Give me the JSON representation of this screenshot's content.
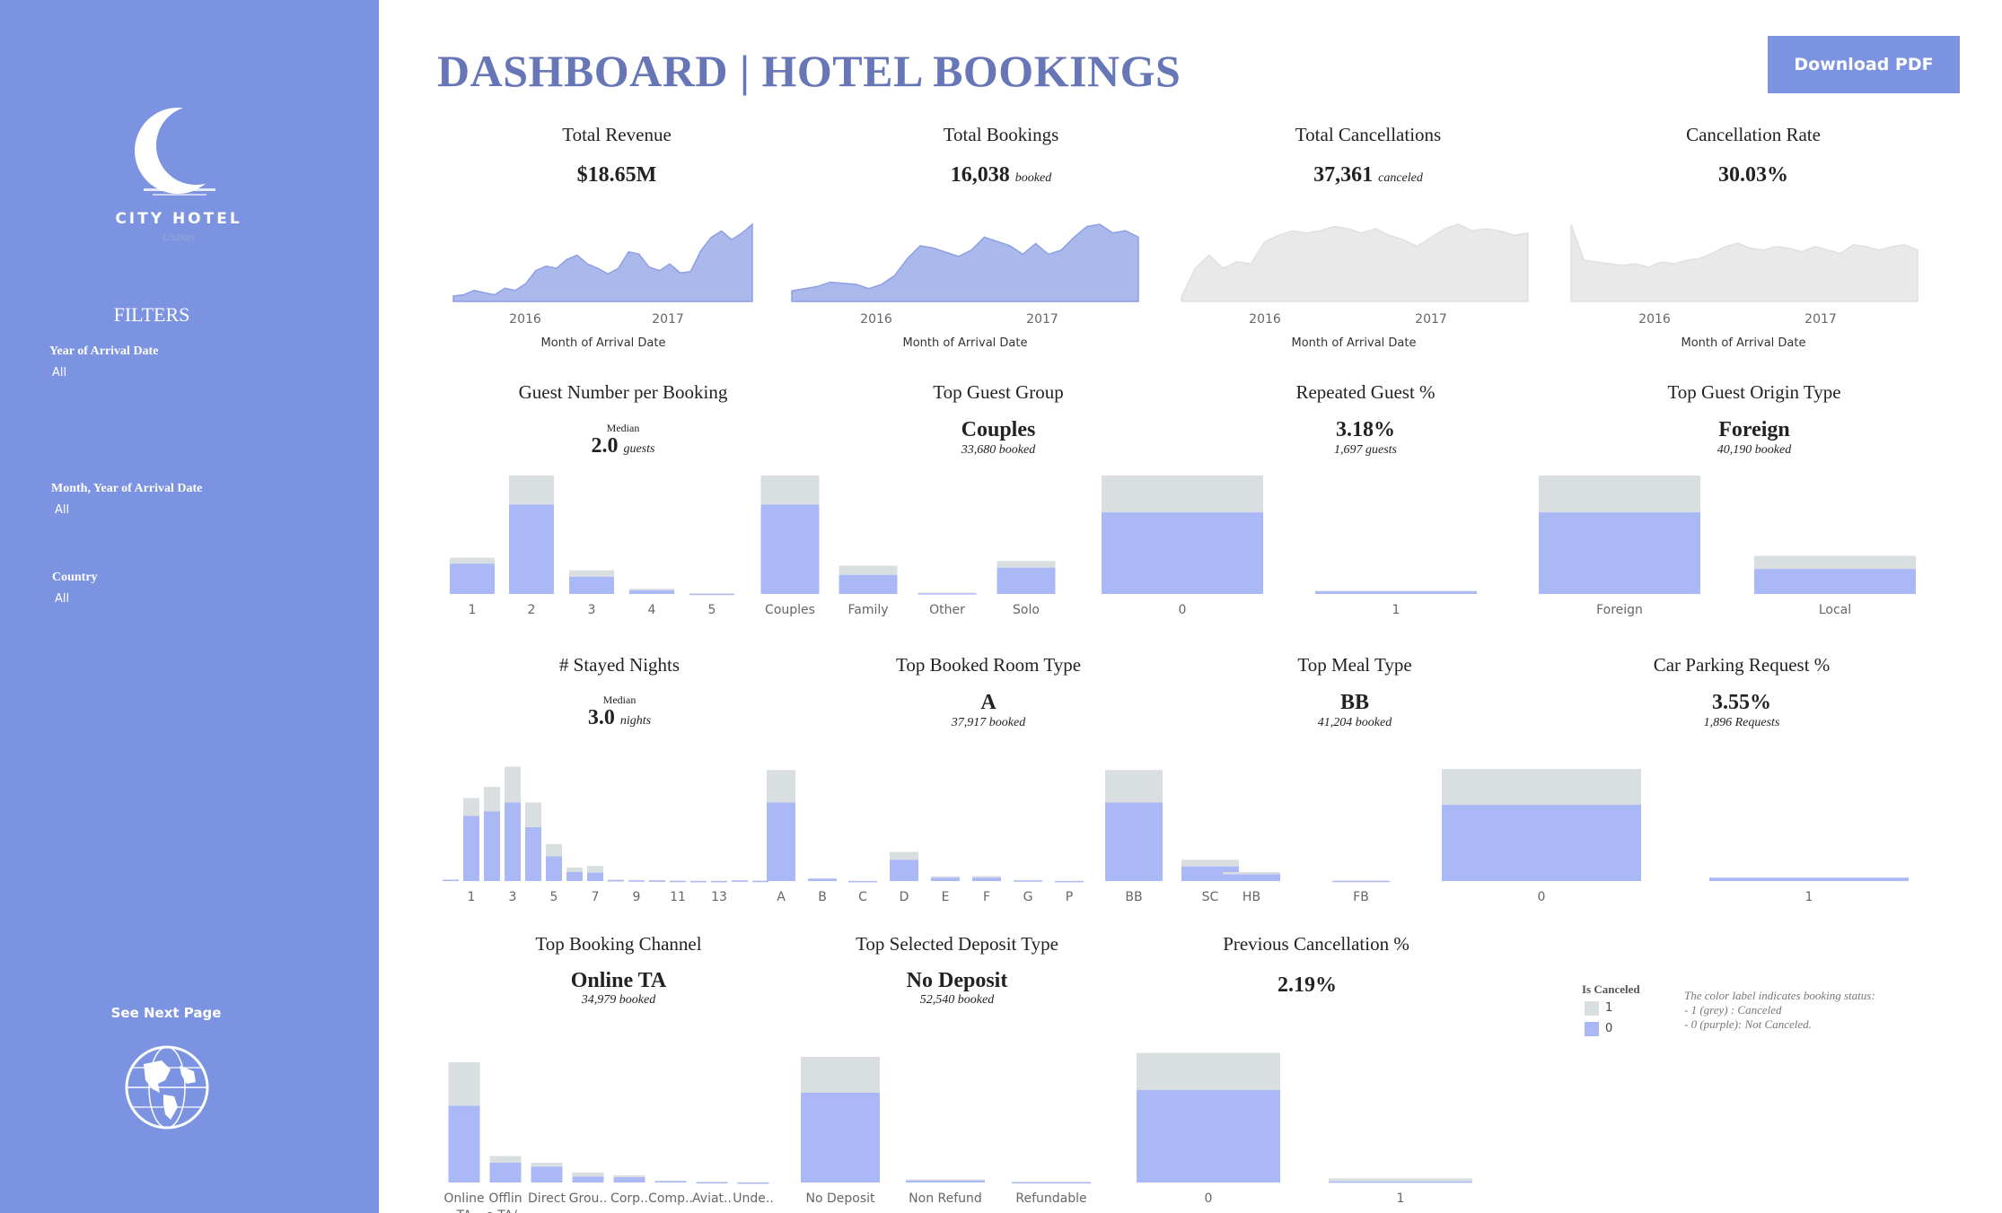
{
  "dashboard": {
    "title": "DASHBOARD | HOTEL BOOKINGS",
    "download_label": "Download PDF",
    "accent": "#7b93e0",
    "title_color": "#6676b6",
    "colors": {
      "not_canceled": "#aab8f5",
      "canceled": "#d9dee1",
      "area_active": "#aab8ec",
      "area_inactive": "#e9e9e9"
    }
  },
  "sidebar": {
    "logo_text": "CITY HOTEL",
    "logo_subtext": "Lisbon",
    "filters_heading": "FILTERS",
    "filters": [
      {
        "label": "Year of Arrival Date",
        "value": "All"
      },
      {
        "label": "Month, Year of Arrival Date",
        "value": "All"
      },
      {
        "label": "Country",
        "value": "All"
      }
    ],
    "next_page_label": "See Next Page",
    "globe_icon": "globe-icon",
    "moon_icon": "crescent-moon-icon"
  },
  "kpis": {
    "total_revenue": {
      "title": "Total Revenue",
      "value": "$18.65M"
    },
    "total_bookings": {
      "title": "Total Bookings",
      "value": "16,038",
      "suffix": "booked"
    },
    "total_cancellations": {
      "title": "Total Cancellations",
      "value": "37,361",
      "suffix": "canceled"
    },
    "cancellation_rate": {
      "title": "Cancellation Rate",
      "value": "30.03%"
    },
    "guest_number": {
      "title": "Guest Number per Booking",
      "median_label": "Median",
      "value": "2.0",
      "suffix": "guests"
    },
    "top_guest_group": {
      "title": "Top Guest Group",
      "value": "Couples",
      "sub": "33,680 booked"
    },
    "repeated_guest": {
      "title": "Repeated Guest %",
      "value": "3.18%",
      "sub": "1,697 guests"
    },
    "top_origin": {
      "title": "Top Guest Origin Type",
      "value": "Foreign",
      "sub": "40,190 booked"
    },
    "stayed_nights": {
      "title": "# Stayed Nights",
      "median_label": "Median",
      "value": "3.0",
      "suffix": "nights"
    },
    "top_room": {
      "title": "Top Booked Room Type",
      "value": "A",
      "sub": "37,917 booked"
    },
    "top_meal": {
      "title": "Top Meal Type",
      "value": "BB",
      "sub": "41,204 booked"
    },
    "car_parking": {
      "title": "Car Parking Request %",
      "value": "3.55%",
      "sub": "1,896 Requests"
    },
    "top_channel": {
      "title": "Top Booking Channel",
      "value": "Online TA",
      "sub": "34,979 booked"
    },
    "top_deposit": {
      "title": "Top Selected Deposit Type",
      "value": "No Deposit",
      "sub": "52,540 booked"
    },
    "prev_cancel": {
      "title": "Previous Cancellation %",
      "value": "2.19%"
    }
  },
  "legend": {
    "title": "Is Canceled",
    "items": [
      {
        "label": "1",
        "color": "#d9dee1"
      },
      {
        "label": "0",
        "color": "#aab8f5"
      }
    ],
    "note_lines": [
      "The color label indicates booking status:",
      "- 1 (grey) : Canceled",
      "- 0 (purple): Not Canceled."
    ]
  },
  "chart_data": [
    {
      "id": "revenue_trend",
      "type": "area",
      "xlabel": "Month of Arrival Date",
      "x_ticks": [
        "2016",
        "2017"
      ],
      "color_role": "active",
      "values": [
        0.5,
        0.6,
        1.0,
        0.8,
        0.6,
        1.2,
        1.0,
        1.6,
        2.8,
        3.2,
        3.0,
        3.8,
        4.2,
        3.4,
        3.0,
        2.5,
        3.0,
        4.5,
        4.3,
        3.1,
        2.8,
        3.4,
        2.6,
        2.7,
        4.6,
        5.8,
        6.4,
        5.6,
        6.2,
        7.0
      ]
    },
    {
      "id": "bookings_trend",
      "type": "area",
      "xlabel": "Month of Arrival Date",
      "x_ticks": [
        "2016",
        "2017"
      ],
      "color_role": "active",
      "values": [
        0.5,
        0.6,
        0.7,
        0.9,
        0.85,
        0.8,
        0.6,
        0.8,
        1.2,
        2.0,
        2.6,
        2.5,
        2.3,
        2.1,
        2.4,
        3.0,
        2.8,
        2.6,
        2.2,
        2.7,
        2.2,
        2.4,
        3.0,
        3.5,
        3.6,
        3.2,
        3.3,
        3.0
      ]
    },
    {
      "id": "cancellations_trend",
      "type": "area",
      "xlabel": "Month of Arrival Date",
      "x_ticks": [
        "2016",
        "2017"
      ],
      "color_role": "inactive",
      "values": [
        0.2,
        1.5,
        2.1,
        1.5,
        1.8,
        1.7,
        2.7,
        3.0,
        3.2,
        3.1,
        3.2,
        3.4,
        3.3,
        3.1,
        3.3,
        3.0,
        2.8,
        2.5,
        2.9,
        3.3,
        3.5,
        3.2,
        3.3,
        3.2,
        3.0,
        3.1
      ]
    },
    {
      "id": "cancel_rate_trend",
      "type": "area",
      "xlabel": "Month of Arrival Date",
      "x_ticks": [
        "2016",
        "2017"
      ],
      "color_role": "inactive",
      "values": [
        4.5,
        2.4,
        2.3,
        2.2,
        2.1,
        2.2,
        2.0,
        2.3,
        2.2,
        2.4,
        2.5,
        2.8,
        3.2,
        3.4,
        3.1,
        3.0,
        3.2,
        3.1,
        2.9,
        3.2,
        3.0,
        2.8,
        3.3,
        3.2,
        3.0,
        3.2,
        3.3,
        3.0
      ]
    },
    {
      "id": "guests_per_booking",
      "type": "bar",
      "stacked": true,
      "categories": [
        "1",
        "2",
        "3",
        "4",
        "5"
      ],
      "not_canceled": [
        2300,
        6800,
        1300,
        280,
        20
      ],
      "canceled": [
        450,
        2200,
        500,
        120,
        10
      ],
      "ymax": 9000
    },
    {
      "id": "guest_group",
      "type": "bar",
      "stacked": true,
      "categories": [
        "Couples",
        "Family",
        "Other",
        "Solo"
      ],
      "not_canceled": [
        6800,
        1450,
        60,
        2000
      ],
      "canceled": [
        2200,
        700,
        30,
        500
      ],
      "ymax": 9000
    },
    {
      "id": "repeated_guest",
      "type": "bar",
      "stacked": true,
      "categories": [
        "0"
      ],
      "not_canceled": [
        6200
      ],
      "canceled": [
        2800
      ],
      "ymax": 9000
    },
    {
      "id": "repeated_guest_1",
      "type": "bar",
      "stacked": true,
      "categories": [
        "1"
      ],
      "not_canceled": [
        200
      ],
      "canceled": [
        40
      ],
      "ymax": 9000
    },
    {
      "id": "origin_type",
      "type": "bar",
      "stacked": true,
      "categories": [
        "Foreign",
        "Local"
      ],
      "not_canceled": [
        6200,
        1900
      ],
      "canceled": [
        2800,
        1000
      ],
      "ymax": 9000
    },
    {
      "id": "stayed_nights",
      "type": "bar",
      "stacked": true,
      "categories": [
        "0",
        "1",
        "2",
        "3",
        "4",
        "5",
        "6",
        "7",
        "8",
        "9",
        "10",
        "11",
        "12",
        "13",
        "14",
        "15"
      ],
      "x_tick_labels": [
        "1",
        "3",
        "5",
        "7",
        "9",
        "11",
        "13"
      ],
      "not_canceled": [
        120,
        5800,
        6200,
        7000,
        4800,
        2200,
        800,
        750,
        80,
        60,
        50,
        20,
        10,
        10,
        50,
        20
      ],
      "canceled": [
        0,
        1600,
        2200,
        3200,
        2200,
        1100,
        400,
        600,
        60,
        40,
        40,
        10,
        10,
        10,
        30,
        10
      ],
      "ymax": 10000
    },
    {
      "id": "room_type",
      "type": "bar",
      "stacked": true,
      "categories": [
        "A",
        "B",
        "C",
        "D",
        "E",
        "F",
        "G",
        "P"
      ],
      "not_canceled": [
        7000,
        200,
        10,
        1900,
        300,
        300,
        60,
        10
      ],
      "canceled": [
        2900,
        60,
        5,
        700,
        120,
        150,
        30,
        5
      ],
      "ymax": 10000
    },
    {
      "id": "meal_type",
      "type": "bar",
      "stacked": true,
      "categories": [
        "BB",
        "SC",
        "HB",
        "FB"
      ],
      "not_canceled": [
        7000,
        1300,
        600,
        20
      ],
      "canceled": [
        2900,
        600,
        200,
        10
      ],
      "ymax": 10000
    },
    {
      "id": "car_parking",
      "type": "bar",
      "stacked": true,
      "categories": [
        "0",
        "1"
      ],
      "not_canceled": [
        6800,
        300
      ],
      "canceled": [
        3200,
        0
      ],
      "ymax": 10000
    },
    {
      "id": "booking_channel",
      "type": "bar",
      "stacked": true,
      "categories": [
        "Online TA",
        "Offline TA/..",
        "Direct",
        "Grou..",
        "Corp..",
        "Comp..",
        "Aviat..",
        "Unde.."
      ],
      "not_canceled": [
        5800,
        1500,
        1200,
        450,
        400,
        100,
        30,
        5
      ],
      "canceled": [
        3300,
        500,
        300,
        300,
        150,
        40,
        10,
        0
      ],
      "ymax": 9500
    },
    {
      "id": "deposit_type",
      "type": "bar",
      "stacked": true,
      "categories": [
        "No Deposit",
        "Non Refund",
        "Refundable"
      ],
      "not_canceled": [
        6800,
        150,
        30
      ],
      "canceled": [
        2700,
        80,
        10
      ],
      "ymax": 9500
    },
    {
      "id": "prev_cancellation",
      "type": "bar",
      "stacked": true,
      "categories": [
        "0",
        "1"
      ],
      "not_canceled": [
        7000,
        80
      ],
      "canceled": [
        2800,
        230
      ],
      "ymax": 9500
    }
  ]
}
